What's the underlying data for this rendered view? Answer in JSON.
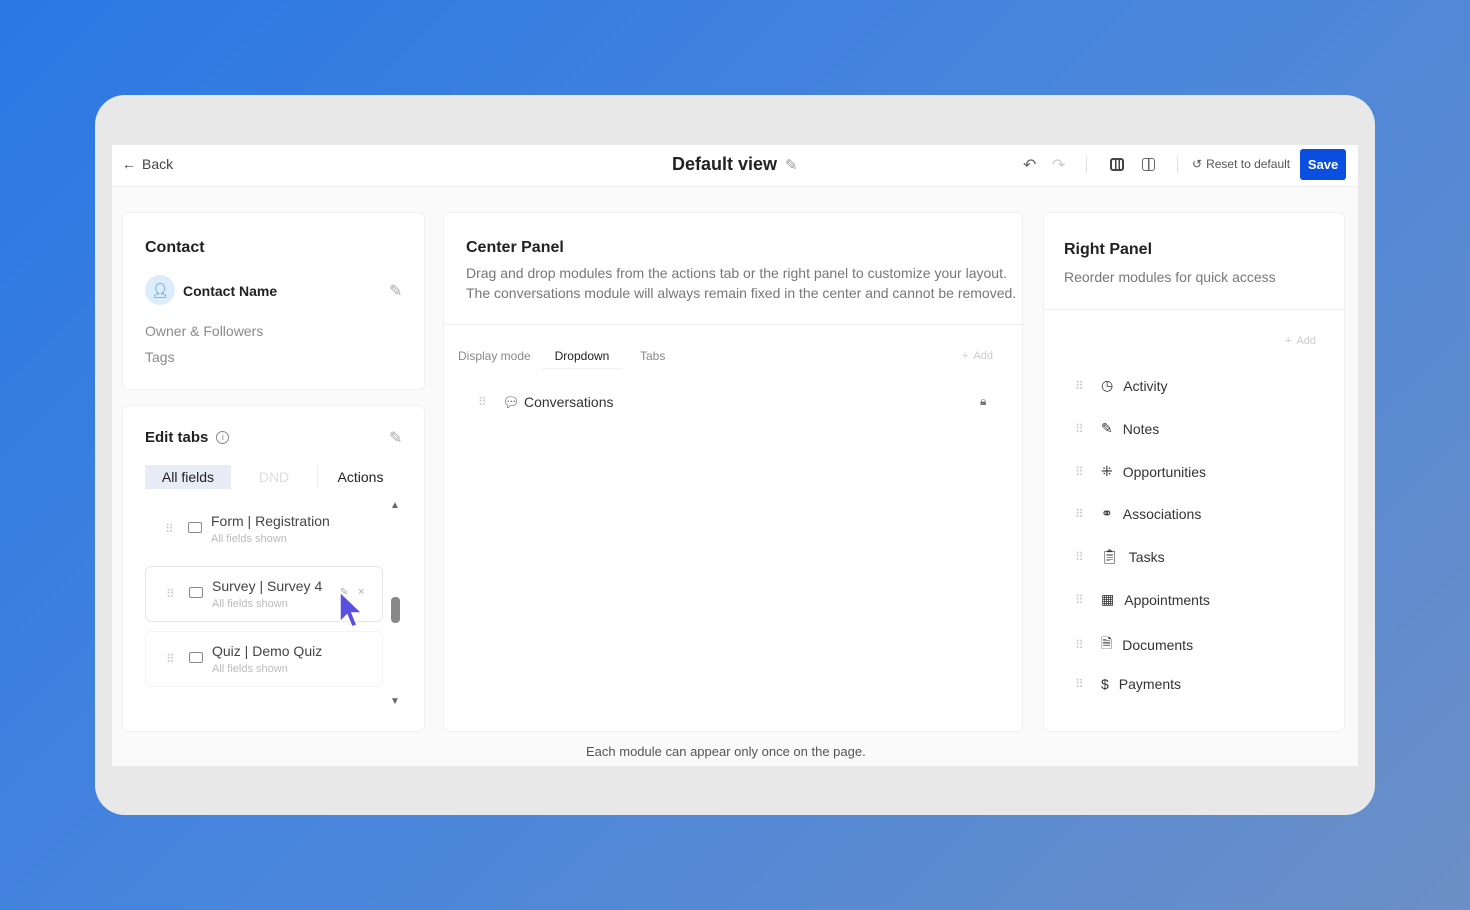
{
  "header": {
    "back_label": "Back",
    "title": "Default view",
    "reset_label": "Reset to default",
    "save_label": "Save"
  },
  "contact": {
    "title": "Contact",
    "name": "Contact Name",
    "fields": [
      "Owner & Followers",
      "Tags"
    ]
  },
  "edit_tabs": {
    "title": "Edit tabs",
    "tabs": [
      "All fields",
      "DND",
      "Actions"
    ],
    "active_tab": "All fields",
    "items": [
      {
        "name": "Form | Registration",
        "sub": "All fields shown"
      },
      {
        "name": "Survey | Survey 4",
        "sub": "All fields shown"
      },
      {
        "name": "Quiz | Demo Quiz",
        "sub": "All fields shown"
      }
    ]
  },
  "center": {
    "title": "Center Panel",
    "desc1": "Drag and drop modules from the actions tab or the right panel to customize your layout.",
    "desc2": "The conversations module will always remain fixed in the center and cannot be removed.",
    "display_mode_label": "Display mode",
    "modes": [
      "Dropdown",
      "Tabs"
    ],
    "active_mode": "Dropdown",
    "add_label": "Add",
    "module": "Conversations"
  },
  "right": {
    "title": "Right Panel",
    "desc": "Reorder modules for quick access",
    "add_label": "Add",
    "items": [
      {
        "label": "Activity",
        "icon": "clock-icon"
      },
      {
        "label": "Notes",
        "icon": "pencil-icon"
      },
      {
        "label": "Opportunities",
        "icon": "grid-icon"
      },
      {
        "label": "Associations",
        "icon": "network-icon"
      },
      {
        "label": "Tasks",
        "icon": "clipboard-icon"
      },
      {
        "label": "Appointments",
        "icon": "calendar-icon"
      },
      {
        "label": "Documents",
        "icon": "document-icon"
      },
      {
        "label": "Payments",
        "icon": "dollar-icon"
      }
    ]
  },
  "footer": {
    "note": "Each module can appear only once on the page."
  },
  "colors": {
    "accent": "#0a4fe0",
    "avatar_bg": "#dcecfb",
    "cursor": "#5b4fe0"
  }
}
